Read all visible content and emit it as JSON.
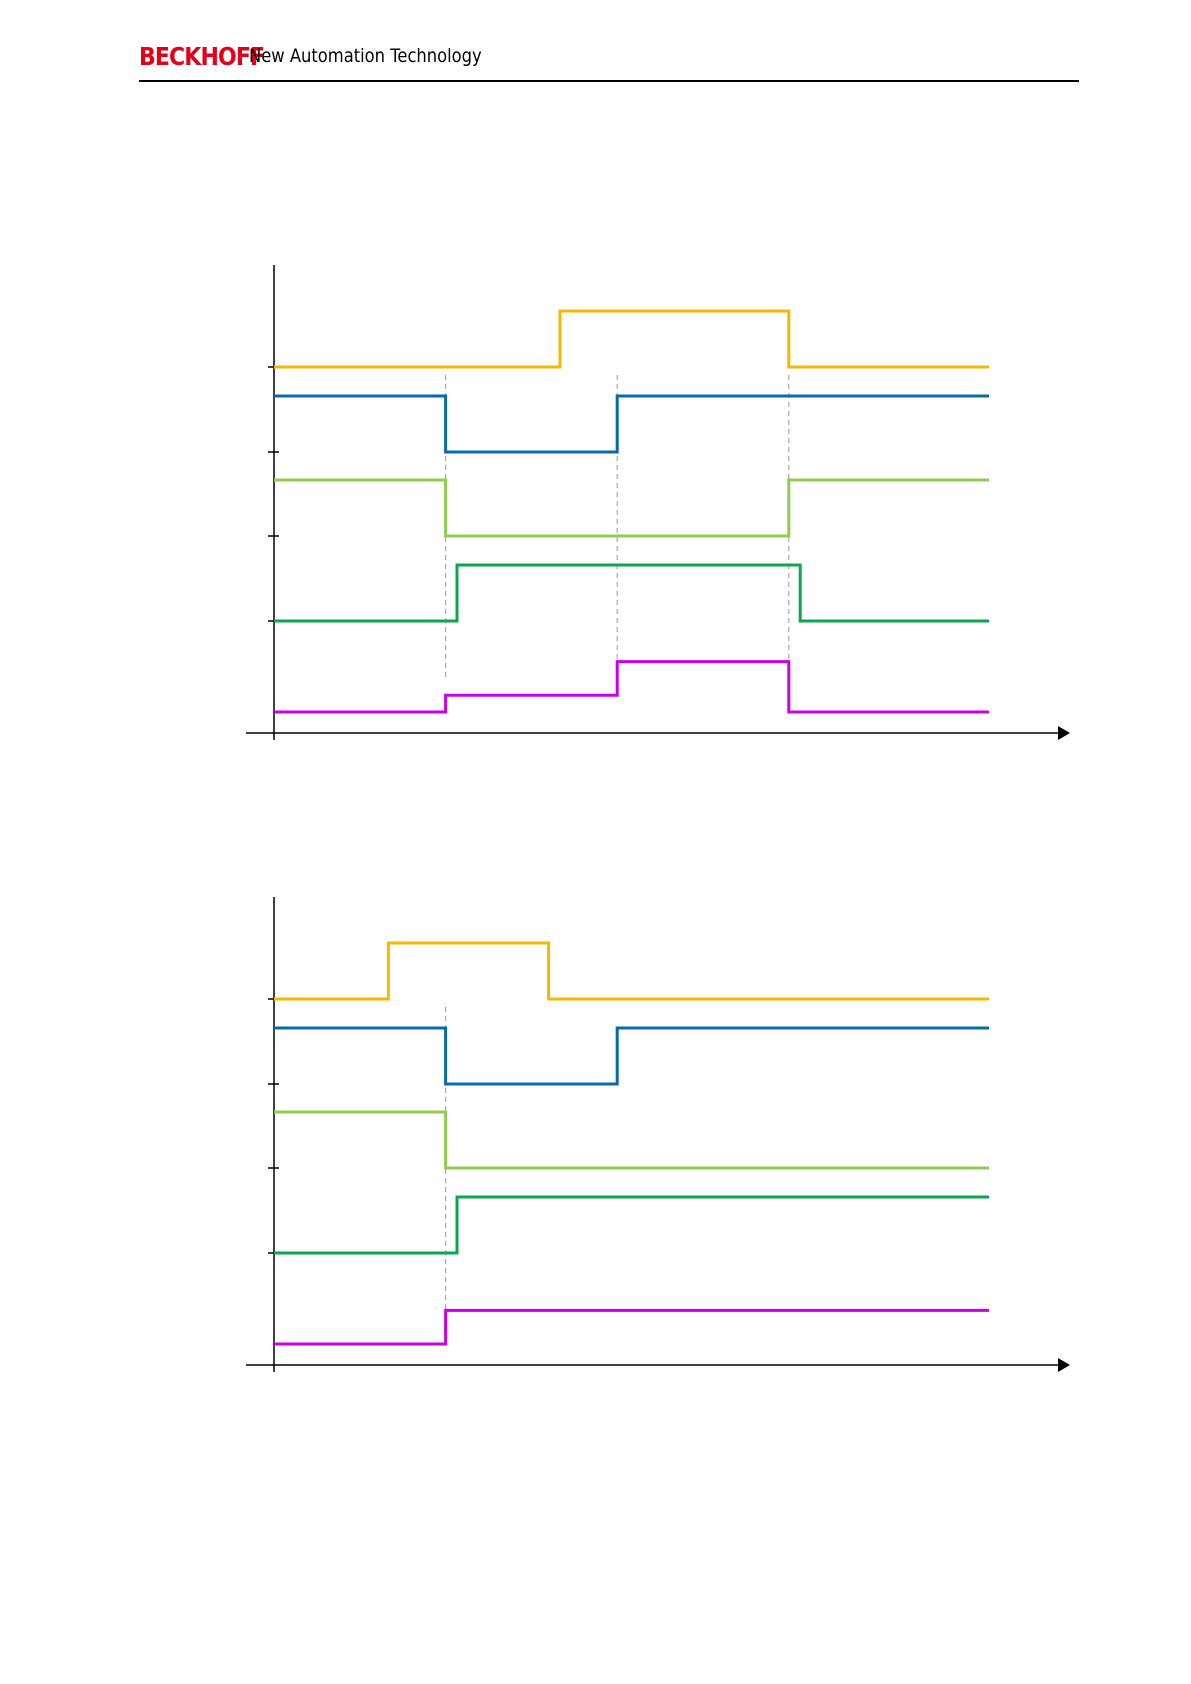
{
  "header": {
    "brand": "BECKHOFF",
    "tagline": "New Automation Technology"
  },
  "colors": {
    "brand": "#e2001a",
    "axis": "#000000",
    "guide": "#aaaaaa",
    "yellow": "#f5b800",
    "blue": "#0a6aa8",
    "lightgreen": "#8fcc50",
    "green": "#0aa650",
    "magenta": "#c800e8"
  },
  "chart_data": [
    {
      "type": "line",
      "title": "",
      "xlabel": "",
      "ylabel": "",
      "grid": false,
      "xlim": [
        0,
        10
      ],
      "x_guides": [
        3,
        6,
        9
      ],
      "series": [
        {
          "color": "yellow",
          "low": 0,
          "high": 1,
          "points": [
            [
              0,
              0
            ],
            [
              5,
              0
            ],
            [
              5,
              1
            ],
            [
              9,
              1
            ],
            [
              9,
              0
            ],
            [
              12.5,
              0
            ]
          ]
        },
        {
          "color": "blue",
          "low": 0,
          "high": 1,
          "points": [
            [
              0,
              1
            ],
            [
              3,
              1
            ],
            [
              3,
              0
            ],
            [
              6,
              0
            ],
            [
              6,
              1
            ],
            [
              12.5,
              1
            ]
          ]
        },
        {
          "color": "lightgreen",
          "low": 0,
          "high": 1,
          "points": [
            [
              0,
              1
            ],
            [
              3,
              1
            ],
            [
              3,
              0
            ],
            [
              9,
              0
            ],
            [
              9,
              1
            ],
            [
              12.5,
              1
            ]
          ]
        },
        {
          "color": "green",
          "low": 0,
          "high": 1,
          "points": [
            [
              0,
              0
            ],
            [
              3.2,
              0
            ],
            [
              3.2,
              1
            ],
            [
              9.2,
              1
            ],
            [
              9.2,
              0
            ],
            [
              12.5,
              0
            ]
          ]
        },
        {
          "color": "magenta",
          "low": 0,
          "high": 2,
          "points": [
            [
              0,
              0
            ],
            [
              3,
              0
            ],
            [
              3,
              0.6
            ],
            [
              6,
              0.6
            ],
            [
              6,
              1.8
            ],
            [
              9,
              1.8
            ],
            [
              9,
              0
            ],
            [
              12.5,
              0
            ]
          ]
        }
      ]
    },
    {
      "type": "line",
      "title": "",
      "xlabel": "",
      "ylabel": "",
      "grid": false,
      "xlim": [
        0,
        10
      ],
      "x_guides": [
        3
      ],
      "series": [
        {
          "color": "yellow",
          "low": 0,
          "high": 1,
          "points": [
            [
              0,
              0
            ],
            [
              2,
              0
            ],
            [
              2,
              1
            ],
            [
              4.8,
              1
            ],
            [
              4.8,
              0
            ],
            [
              12.5,
              0
            ]
          ]
        },
        {
          "color": "blue",
          "low": 0,
          "high": 1,
          "points": [
            [
              0,
              1
            ],
            [
              3,
              1
            ],
            [
              3,
              0
            ],
            [
              6,
              0
            ],
            [
              6,
              1
            ],
            [
              12.5,
              1
            ]
          ]
        },
        {
          "color": "lightgreen",
          "low": 0,
          "high": 1,
          "points": [
            [
              0,
              1
            ],
            [
              3,
              1
            ],
            [
              3,
              0
            ],
            [
              12.5,
              0
            ]
          ]
        },
        {
          "color": "green",
          "low": 0,
          "high": 1,
          "points": [
            [
              0,
              0
            ],
            [
              3.2,
              0
            ],
            [
              3.2,
              1
            ],
            [
              12.5,
              1
            ]
          ]
        },
        {
          "color": "magenta",
          "low": 0,
          "high": 2,
          "points": [
            [
              0,
              0
            ],
            [
              3,
              0
            ],
            [
              3,
              1.2
            ],
            [
              12.5,
              1.2
            ]
          ]
        }
      ]
    }
  ]
}
